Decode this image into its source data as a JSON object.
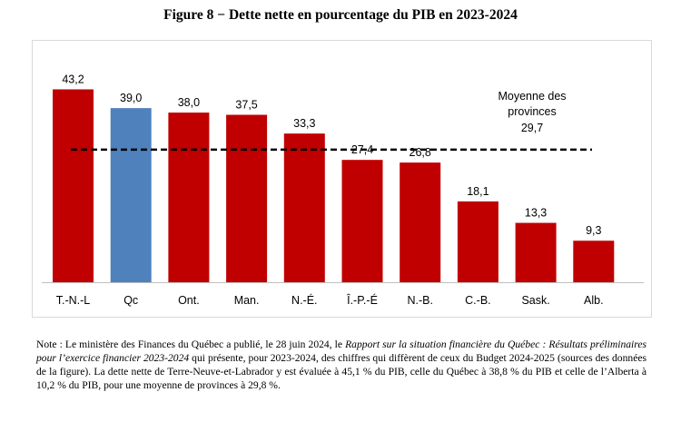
{
  "figure": {
    "title": "Figure 8 − Dette nette en pourcentage du PIB en 2023-2024"
  },
  "chart_data": {
    "type": "bar",
    "categories": [
      "T.-N.-L",
      "Qc",
      "Ont.",
      "Man.",
      "N.-É.",
      "Î.-P.-É",
      "N.-B.",
      "C.-B.",
      "Sask.",
      "Alb."
    ],
    "value_labels": [
      "43,2",
      "39,0",
      "38,0",
      "37,5",
      "33,3",
      "27,4",
      "26,8",
      "18,1",
      "13,3",
      "9,3"
    ],
    "series": [
      {
        "values": [
          43.2,
          39.0,
          38.0,
          37.5,
          33.3,
          27.4,
          26.8,
          18.1,
          13.3,
          9.3
        ]
      }
    ],
    "highlight_category": "Qc",
    "colors": {
      "default_bar": "#c00000",
      "highlight_bar": "#4f81bd",
      "average_line": "#000000",
      "axis": "#bfbfbf"
    },
    "reference_line": {
      "value": 29.7,
      "label_line1": "Moyenne des",
      "label_line2": "provinces",
      "value_label": "29,7",
      "style": "dashed"
    },
    "ylim": [
      0,
      50
    ],
    "grid": false,
    "legend": "none",
    "xlabel": "",
    "ylabel": ""
  },
  "note": {
    "prefix": "Note : Le ministère des Finances du Québec a publié, le 28 juin 2024, le ",
    "italic": "Rapport sur la situation financière du Québec : Résultats préliminaires pour l’exercice financier 2023-2024",
    "suffix": " qui présente, pour 2023-2024, des chiffres qui diffèrent de ceux du Budget 2024-2025 (sources des données de la figure). La dette nette de Terre-Neuve-et-Labrador y est évaluée à 45,1 % du PIB, celle du Québec à 38,8 % du PIB et celle de l’Alberta à 10,2 % du PIB, pour une moyenne de provinces à 29,8 %."
  }
}
